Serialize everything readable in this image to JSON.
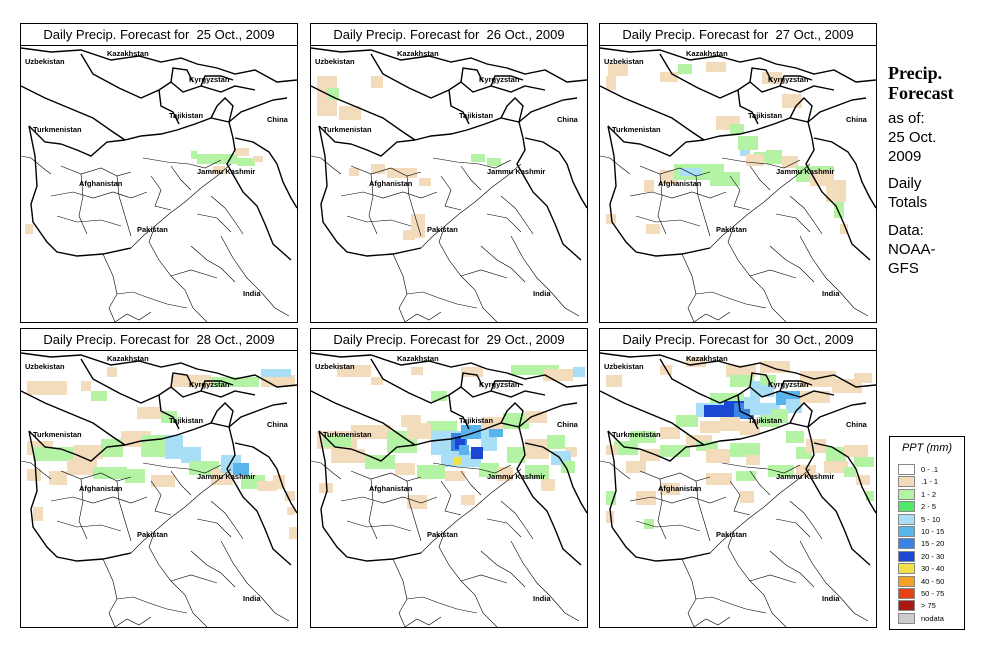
{
  "panels": [
    {
      "title": "Daily Precip. Forecast for  25 Oct., 2009",
      "date": "25 Oct., 2009"
    },
    {
      "title": "Daily Precip. Forecast for  26 Oct., 2009",
      "date": "26 Oct., 2009"
    },
    {
      "title": "Daily Precip. Forecast for  27 Oct., 2009",
      "date": "27 Oct., 2009"
    },
    {
      "title": "Daily Precip. Forecast for  28 Oct., 2009",
      "date": "28 Oct., 2009"
    },
    {
      "title": "Daily Precip. Forecast for  29 Oct., 2009",
      "date": "29 Oct., 2009"
    },
    {
      "title": "Daily Precip. Forecast for  30 Oct., 2009",
      "date": "30 Oct., 2009"
    }
  ],
  "map_labels": {
    "kazakhstan": "Kazakhstan",
    "uzbekistan": "Uzbekistan",
    "kyrgyzstan": "Kyrgyzstan",
    "tajikistan": "Tajikistan",
    "turkmenistan": "Turkmenistan",
    "china": "China",
    "afghanistan": "Afghanistan",
    "jammu_kashmir": "Jammu Kashmir",
    "pakistan": "Pakistan",
    "india": "India"
  },
  "side": {
    "title_line1": "Precip.",
    "title_line2": "Forecast",
    "asof_line1": "as of:",
    "asof_line2": "25 Oct.",
    "asof_line3": "2009",
    "totals_line1": "Daily",
    "totals_line2": "Totals",
    "data_line1": "Data:",
    "data_line2": "NOAA-",
    "data_line3": "GFS"
  },
  "legend": {
    "title": "PPT (mm)",
    "items": [
      {
        "range": "0 - .1",
        "color": "#ffffff"
      },
      {
        "range": ".1 - 1",
        "color": "#f2dcbc"
      },
      {
        "range": "1 - 2",
        "color": "#b4f2a4"
      },
      {
        "range": "2 - 5",
        "color": "#52e86a"
      },
      {
        "range": "5 - 10",
        "color": "#a8def6"
      },
      {
        "range": "10 - 15",
        "color": "#5ab4ec"
      },
      {
        "range": "15 - 20",
        "color": "#3a84e6"
      },
      {
        "range": "20 - 30",
        "color": "#1a48d2"
      },
      {
        "range": "30 - 40",
        "color": "#f2e24a"
      },
      {
        "range": "40 - 50",
        "color": "#f2a226"
      },
      {
        "range": "50 - 75",
        "color": "#e6421a"
      },
      {
        "range": "> 75",
        "color": "#a81810"
      },
      {
        "range": "nodata",
        "color": "#cccccc"
      }
    ]
  }
}
